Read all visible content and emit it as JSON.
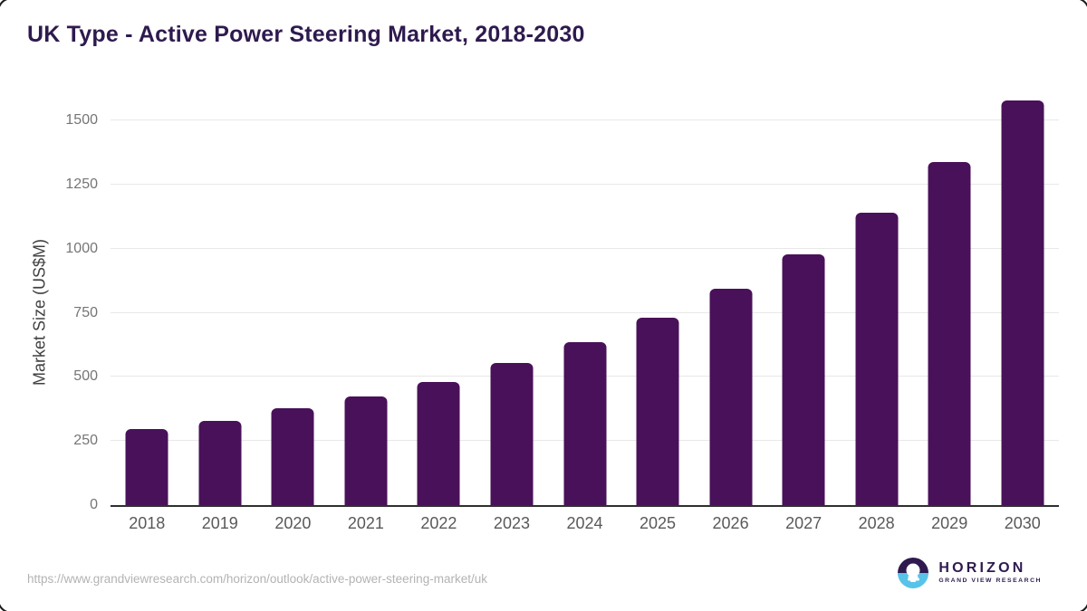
{
  "page": {
    "title": "UK Type - Active Power Steering Market, 2018-2030"
  },
  "chart_data": {
    "type": "bar",
    "title": "UK Type - Active Power Steering Market, 2018-2030",
    "categories": [
      "2018",
      "2019",
      "2020",
      "2021",
      "2022",
      "2023",
      "2024",
      "2025",
      "2026",
      "2027",
      "2028",
      "2029",
      "2030"
    ],
    "values": [
      295,
      330,
      376,
      423,
      480,
      554,
      635,
      731,
      844,
      979,
      1141,
      1338,
      1579
    ],
    "xlabel": "",
    "ylabel": "Market Size (US$M)",
    "ylim": [
      0,
      1500
    ],
    "yticks": [
      0,
      250,
      500,
      750,
      1000,
      1250,
      1500
    ],
    "grid": true,
    "legend": "none",
    "bar_color": "#491159"
  },
  "footer": {
    "source_url": "https://www.grandviewresearch.com/horizon/outlook/active-power-steering-market/uk",
    "logo_name": "HORIZON",
    "logo_subtitle": "GRAND VIEW RESEARCH"
  },
  "colors": {
    "bar": "#491159",
    "title_text": "#2e1a4e",
    "gridline": "#e8e8e8",
    "axis_line": "#2f2f2f",
    "y_tick_text": "#757575",
    "x_tick_text": "#595959",
    "url_text": "#b3b3b3",
    "logo_purple": "#2e1a4e",
    "logo_blue": "#58c3e9"
  }
}
